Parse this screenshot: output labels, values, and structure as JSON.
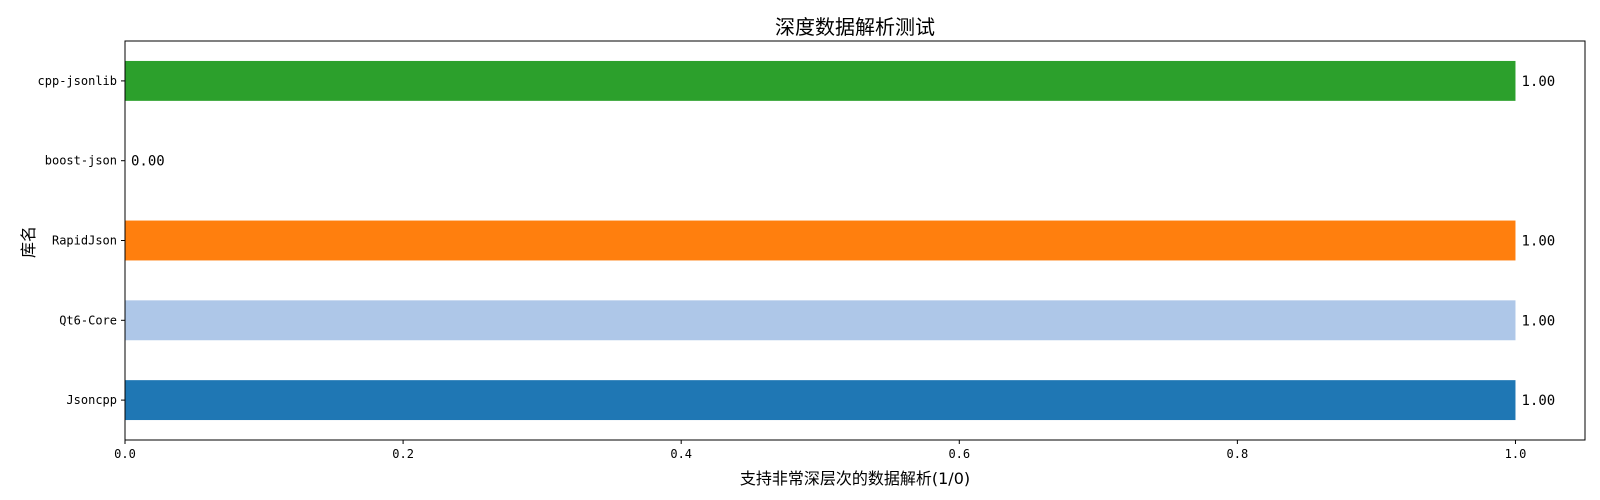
{
  "chart_data": {
    "type": "bar",
    "orientation": "horizontal",
    "title": "深度数据解析测试",
    "xlabel": "支持非常深层次的数据解析(1/0)",
    "ylabel": "库名",
    "xlim": [
      0,
      1.05
    ],
    "x_ticks": [
      "0.0",
      "0.2",
      "0.4",
      "0.6",
      "0.8",
      "1.0"
    ],
    "x_tick_values": [
      0,
      0.2,
      0.4,
      0.6,
      0.8,
      1.0
    ],
    "categories": [
      "Jsoncpp",
      "Qt6-Core",
      "RapidJson",
      "boost-json",
      "cpp-jsonlib"
    ],
    "values": [
      1,
      1,
      1,
      0,
      1
    ],
    "data_labels": [
      "1.00",
      "1.00",
      "1.00",
      "0.00",
      "1.00"
    ],
    "colors": [
      "#1f77b4",
      "#aec7e8",
      "#ff7f0e",
      "#ffbb78",
      "#2ca02c"
    ],
    "grid": false,
    "legend": "none"
  }
}
